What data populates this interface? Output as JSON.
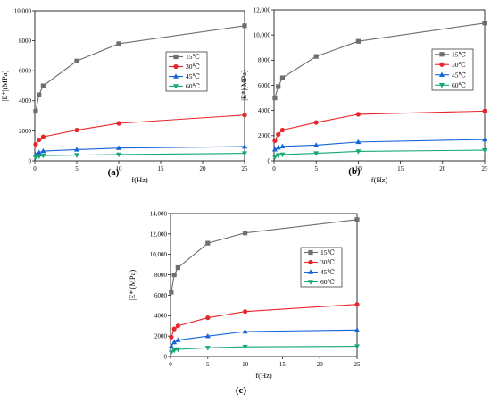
{
  "chart_data": [
    {
      "type": "line",
      "panel_label": "(a)",
      "xlabel": "f(Hz)",
      "ylabel": "|E*|(MPa)",
      "xlim": [
        0,
        25
      ],
      "ylim": [
        0,
        10000
      ],
      "xticks": [
        0,
        5,
        10,
        15,
        20,
        25
      ],
      "xtick_labels": [
        "0",
        "5",
        "10",
        "15",
        "20",
        "25"
      ],
      "yticks": [
        0,
        2000,
        4000,
        6000,
        8000,
        10000
      ],
      "ytick_labels": [
        "0",
        "2000",
        "4000",
        "6000",
        "8000",
        "10,000"
      ],
      "grid": false,
      "legend_position": "right",
      "x": [
        0.1,
        0.5,
        1,
        5,
        10,
        25
      ],
      "series": [
        {
          "name": "15℃",
          "color": "#6e6e6e",
          "marker": "square",
          "values": [
            3300,
            4400,
            5000,
            6650,
            7800,
            9000
          ]
        },
        {
          "name": "30℃",
          "color": "#e8262b",
          "marker": "circle",
          "values": [
            1100,
            1400,
            1600,
            2050,
            2500,
            3050
          ]
        },
        {
          "name": "45℃",
          "color": "#1565d8",
          "marker": "triangle-up",
          "values": [
            400,
            550,
            650,
            750,
            850,
            950
          ]
        },
        {
          "name": "60℃",
          "color": "#17a870",
          "marker": "triangle-down",
          "values": [
            250,
            300,
            350,
            380,
            420,
            500
          ]
        }
      ]
    },
    {
      "type": "line",
      "panel_label": "(b)",
      "xlabel": "f(Hz)",
      "ylabel": "|E*|(MPa)",
      "xlim": [
        0,
        25
      ],
      "ylim": [
        0,
        12000
      ],
      "xticks": [
        0,
        5,
        10,
        15,
        20,
        25
      ],
      "xtick_labels": [
        "0",
        "5",
        "10",
        "15",
        "20",
        "25"
      ],
      "yticks": [
        0,
        2000,
        4000,
        6000,
        8000,
        10000,
        12000
      ],
      "ytick_labels": [
        "0",
        "2000",
        "4000",
        "6000",
        "8000",
        "10,000",
        "12,000"
      ],
      "grid": false,
      "legend_position": "right",
      "x": [
        0.1,
        0.5,
        1,
        5,
        10,
        25
      ],
      "series": [
        {
          "name": "15℃",
          "color": "#6e6e6e",
          "marker": "square",
          "values": [
            5000,
            5900,
            6600,
            8300,
            9500,
            10950
          ]
        },
        {
          "name": "30℃",
          "color": "#e8262b",
          "marker": "circle",
          "values": [
            1600,
            2100,
            2450,
            3050,
            3700,
            3950
          ]
        },
        {
          "name": "45℃",
          "color": "#1565d8",
          "marker": "triangle-up",
          "values": [
            900,
            1050,
            1150,
            1250,
            1500,
            1700
          ]
        },
        {
          "name": "60℃",
          "color": "#17a870",
          "marker": "triangle-down",
          "values": [
            300,
            450,
            500,
            600,
            750,
            850
          ]
        }
      ]
    },
    {
      "type": "line",
      "panel_label": "(c)",
      "xlabel": "f(Hz)",
      "ylabel": "|E*|(MPa)",
      "xlim": [
        0,
        25
      ],
      "ylim": [
        0,
        14000
      ],
      "xticks": [
        0,
        5,
        10,
        15,
        20,
        25
      ],
      "xtick_labels": [
        "0",
        "5",
        "10",
        "15",
        "20",
        "25"
      ],
      "yticks": [
        0,
        2000,
        4000,
        6000,
        8000,
        10000,
        12000,
        14000
      ],
      "ytick_labels": [
        "0",
        "2000",
        "4000",
        "6000",
        "8000",
        "10,000",
        "12,000",
        "14,000"
      ],
      "grid": false,
      "legend_position": "right",
      "x": [
        0.1,
        0.5,
        1,
        5,
        10,
        25
      ],
      "series": [
        {
          "name": "15℃",
          "color": "#6e6e6e",
          "marker": "square",
          "values": [
            6300,
            8000,
            8700,
            11100,
            12100,
            13400
          ]
        },
        {
          "name": "30℃",
          "color": "#e8262b",
          "marker": "circle",
          "values": [
            1900,
            2700,
            3000,
            3800,
            4400,
            5100
          ]
        },
        {
          "name": "45℃",
          "color": "#1565d8",
          "marker": "triangle-up",
          "values": [
            1000,
            1400,
            1600,
            2000,
            2450,
            2600
          ]
        },
        {
          "name": "60℃",
          "color": "#17a870",
          "marker": "triangle-down",
          "values": [
            400,
            600,
            700,
            850,
            950,
            1000
          ]
        }
      ]
    }
  ]
}
